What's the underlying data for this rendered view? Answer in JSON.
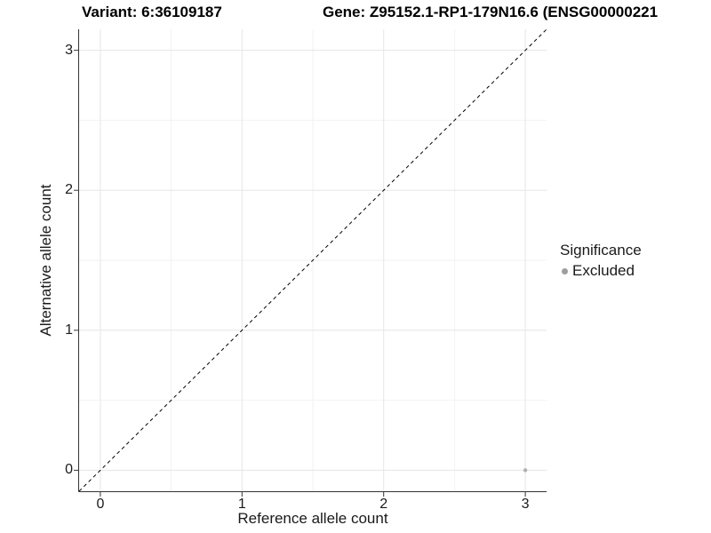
{
  "chart_data": {
    "type": "scatter",
    "titles": {
      "left": "Variant: 6:36109187",
      "right": "Gene: Z95152.1-RP1-179N16.6 (ENSG00000221"
    },
    "xlabel": "Reference allele count",
    "ylabel": "Alternative allele count",
    "xlim": [
      -0.15,
      3.15
    ],
    "ylim": [
      -0.15,
      3.15
    ],
    "xticks": [
      0,
      1,
      2,
      3
    ],
    "yticks": [
      0,
      1,
      2,
      3
    ],
    "minor_ticks": [
      0.5,
      1.5,
      2.5
    ],
    "grid": "major-and-minor",
    "reference_line": {
      "type": "identity y=x",
      "style": "dashed",
      "color": "#000000"
    },
    "series": [
      {
        "name": "Excluded",
        "color": "#b0b0b0",
        "points": [
          {
            "x": 3,
            "y": 0
          }
        ]
      }
    ],
    "legend": {
      "title": "Significance",
      "position": "right",
      "entries": [
        {
          "label": "Excluded",
          "color": "#9e9e9e"
        }
      ]
    },
    "colors": {
      "axis_line": "#333333",
      "tick_mark": "#333333",
      "grid_major": "#e6e6e6",
      "grid_minor": "#f2f2f2",
      "background": "#ffffff"
    }
  }
}
